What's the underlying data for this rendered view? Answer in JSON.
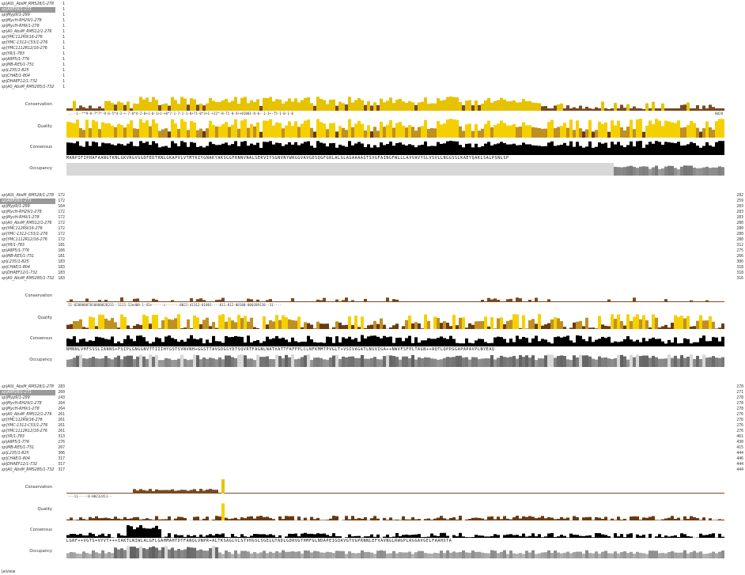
{
  "blocks": [
    {
      "sequences": [
        {
          "name": "sp|A0L_AbsM_RMS28/1-278",
          "start": "1",
          "end": "",
          "selected": false
        },
        {
          "name": "sp|A8P28/1-271",
          "start": "1",
          "end": "",
          "selected": true
        },
        {
          "name": "sp|Myp9/1-299",
          "start": "1",
          "end": "",
          "selected": false
        },
        {
          "name": "sp|MycH-RH29/1-278",
          "start": "1",
          "end": "",
          "selected": false
        },
        {
          "name": "sp|MycH-RH9/1-278",
          "start": "1",
          "end": "",
          "selected": false
        },
        {
          "name": "sp|A0_AbsM_RMS12/1-276",
          "start": "1",
          "end": "",
          "selected": false
        },
        {
          "name": "sp|YMC112R9/16-276",
          "start": "1",
          "end": "",
          "selected": false
        },
        {
          "name": "sp|YMC-1312-C53/1-276",
          "start": "1",
          "end": "",
          "selected": false
        },
        {
          "name": "sp|YMC1112R12/16-276",
          "start": "1",
          "end": "",
          "selected": false
        },
        {
          "name": "sp|YR/1-783",
          "start": "1",
          "end": "",
          "selected": false
        },
        {
          "name": "sp|A8P5/1-776",
          "start": "1",
          "end": "",
          "selected": false
        },
        {
          "name": "sp|MB-RE5/1-751",
          "start": "1",
          "end": "",
          "selected": false
        },
        {
          "name": "sp|L235/1-825",
          "start": "1",
          "end": "",
          "selected": false
        },
        {
          "name": "sp|CHAE/1-804",
          "start": "1",
          "end": "",
          "selected": false
        },
        {
          "name": "sp|DHAEF12/1-732",
          "start": "1",
          "end": "",
          "selected": false
        },
        {
          "name": "sp|A0_AbsM_RMS285/1-732",
          "start": "1",
          "end": "",
          "selected": false
        }
      ],
      "consensus": "MANPIFIPHAFAANGTKNLGKVRGVGGDFEDTRNLGKAPVLVTMTKIYGNAKYAKSGGFRNNVNALSEKVIYSGNVNYWRGGVAVGDSQGFGRLALGLAGAAAASTSVGFAINGFWLLLAVVAVYSLVSVLLNGGSSLKAEYQAKLSALPSNLSP",
      "cons_scores": "...-1--**9-8-7*7*-9-6-5*4-3-+-7-8*4-2-0+1-0-1+1-+0*7-1-7-2-1-0+71-0*3+1-+22*-0-71-0-4++01001-0-0--1-1+-75-1-0-1-0",
      "end_cons": "0020"
    },
    {
      "sequences": [
        {
          "name": "sp|A0L_AbsM_RMS28/1-278",
          "start": "172",
          "end": "282",
          "selected": false
        },
        {
          "name": "sp|A8P28/1-271",
          "start": "172",
          "end": "259",
          "selected": true
        },
        {
          "name": "sp|Myp9/1-299",
          "start": "164",
          "end": "283",
          "selected": false
        },
        {
          "name": "sp|MycH-RH29/1-278",
          "start": "172",
          "end": "283",
          "selected": false
        },
        {
          "name": "sp|MycH-RH9/1-278",
          "start": "172",
          "end": "283",
          "selected": false
        },
        {
          "name": "sp|A0_AbsM_RMS12/1-276",
          "start": "172",
          "end": "280",
          "selected": false
        },
        {
          "name": "sp|YMC112R9/16-276",
          "start": "172",
          "end": "280",
          "selected": false
        },
        {
          "name": "sp|YMC-1312-C53/1-276",
          "start": "172",
          "end": "280",
          "selected": false
        },
        {
          "name": "sp|YMC1112R12/16-276",
          "start": "172",
          "end": "280",
          "selected": false
        },
        {
          "name": "sp|YR/1-783",
          "start": "181",
          "end": "312",
          "selected": false
        },
        {
          "name": "sp|A8P5/1-776",
          "start": "166",
          "end": "275",
          "selected": false
        },
        {
          "name": "sp|MB-RE5/1-751",
          "start": "181",
          "end": "266",
          "selected": false
        },
        {
          "name": "sp|L235/1-825",
          "start": "183",
          "end": "306",
          "selected": false
        },
        {
          "name": "sp|CHAE/1-804",
          "start": "183",
          "end": "318",
          "selected": false
        },
        {
          "name": "sp|DHAEF12/1-732",
          "start": "183",
          "end": "318",
          "selected": false
        },
        {
          "name": "sp|A0_AbsM_RMS285/1-732",
          "start": "183",
          "end": "316",
          "selected": false
        }
      ],
      "consensus": "NMNNLVHFSSSLIANNS+FSIPLGNGGNVTTIIIHYGSTSVNVNH+GGSTTAVGDGSYDTSQVRTFAGNLNATVATTFAFFPLCLNFKMMTPVGLT+VSIVAGATLNSVIGA++NWVFSFPLTAGN++AQTLQPPGGAPAPAVPLNYEAQ",
      "cons_scores": "21-02000007010000020231--1121-12ed00-1-42e------c-------0021-41312-01001----011-012-00100-000209130--31----",
      "end_cons": ""
    },
    {
      "sequences": [
        {
          "name": "sp|A0L_AbsM_RMS28/1-278",
          "start": "283",
          "end": "278",
          "selected": false
        },
        {
          "name": "sp|A8P28/1-271",
          "start": "260",
          "end": "271",
          "selected": true
        },
        {
          "name": "sp|Myp9/1-299",
          "start": "243",
          "end": "278",
          "selected": false
        },
        {
          "name": "sp|MycH-RH29/1-278",
          "start": "264",
          "end": "278",
          "selected": false
        },
        {
          "name": "sp|MycH-RH9/1-278",
          "start": "264",
          "end": "278",
          "selected": false
        },
        {
          "name": "sp|A0_AbsM_RMS12/1-276",
          "start": "261",
          "end": "276",
          "selected": false
        },
        {
          "name": "sp|YMC112R9/16-276",
          "start": "261",
          "end": "276",
          "selected": false
        },
        {
          "name": "sp|YMC-1312-C53/1-276",
          "start": "261",
          "end": "276",
          "selected": false
        },
        {
          "name": "sp|YMC1112R12/16-276",
          "start": "261",
          "end": "276",
          "selected": false
        },
        {
          "name": "sp|YR/1-783",
          "start": "313",
          "end": "461",
          "selected": false
        },
        {
          "name": "sp|A8P5/1-776",
          "start": "276",
          "end": "430",
          "selected": false
        },
        {
          "name": "sp|MB-RE5/1-751",
          "start": "267",
          "end": "415",
          "selected": false
        },
        {
          "name": "sp|L235/1-825",
          "start": "306",
          "end": "444",
          "selected": false
        },
        {
          "name": "sp|CHAE/1-804",
          "start": "317",
          "end": "446",
          "selected": false
        },
        {
          "name": "sp|DHAEF12/1-732",
          "start": "317",
          "end": "444",
          "selected": false
        },
        {
          "name": "sp|A0_AbsM_RMS285/1-732",
          "start": "317",
          "end": "444",
          "selected": false
        }
      ],
      "consensus": "LGRF++VGTS+VYVT+++IAKTLNIWLALGFLGAHMAHTDTFANQLVNPR+ALTKSAGLVLSTVHGSLSGELGTADLGDRVGTHMFGLNDAPEIGQAVGTVGPRNNLEFVAVNGLRWGPLRGGAVGELFAAHSTA",
      "cons_scores": "---11-----0-00232411--",
      "end_cons": ""
    }
  ],
  "track_labels": {
    "conservation": "Conservation",
    "quality": "Quality",
    "consensus": "Consensus",
    "occupancy": "Occupancy"
  },
  "footer": "Jalview",
  "colors": {
    "hydrophobic": "#80a0f0",
    "positive": "#f01505",
    "negative": "#c048c0",
    "polar": "#15c015",
    "cysteine": "#f08080",
    "glycine": "#f09048",
    "proline": "#c0c000",
    "aromatic": "#15a4a4",
    "conservation": "#e6c200",
    "quality_low": "#6b3a10",
    "quality_high": "#f5d000"
  }
}
